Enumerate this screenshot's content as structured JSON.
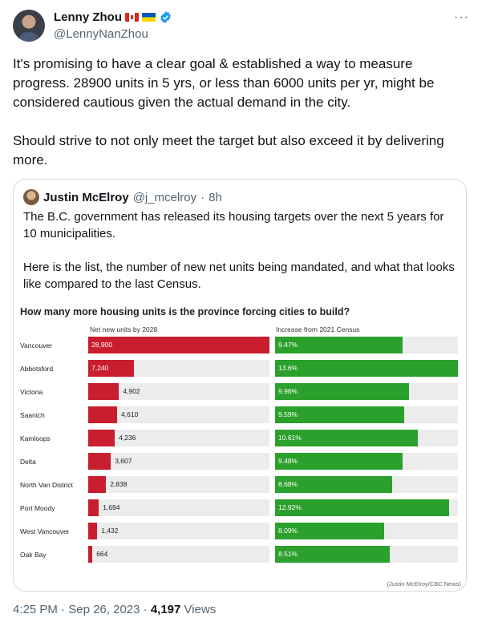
{
  "author": {
    "name": "Lenny Zhou",
    "handle": "@LennyNanZhou",
    "flags": [
      "canada-flag",
      "ukraine-flag"
    ],
    "verified_icon": "verified-badge-icon",
    "verified_color": "#1d9bf0"
  },
  "more_icon": "···",
  "tweet_text": "It's promising to have a clear goal & established a way to measure progress. 28900 units in 5 yrs, or less than 6000 units per yr, might be considered cautious given the actual demand in the city.\n\nShould strive to not only meet the target but also exceed it by delivering more.",
  "quote": {
    "name": "Justin McElroy",
    "handle": "@j_mcelroy",
    "sep": "·",
    "time": "8h",
    "text": "The B.C. government has released its housing targets over the next 5 years for 10 municipalities.\n\nHere is the list, the number of new net units being mandated, and what that looks like compared to the last Census."
  },
  "chart_data": {
    "type": "bar",
    "title": "How many more housing units is the province forcing cities to build?",
    "series_headers": [
      "Net new units by 2028",
      "Increase from 2021 Census"
    ],
    "categories": [
      "Vancouver",
      "Abbotsford",
      "Victoria",
      "Saanich",
      "Kamloops",
      "Delta",
      "North Van District",
      "Port Moody",
      "West Vancouver",
      "Oak Bay"
    ],
    "series": [
      {
        "name": "Net new units by 2028",
        "values": [
          28900,
          7240,
          4902,
          4610,
          4236,
          3607,
          2838,
          1694,
          1432,
          664
        ],
        "labels": [
          "28,900",
          "7,240",
          "4,902",
          "4,610",
          "4,236",
          "3,607",
          "2,838",
          "1,694",
          "1,432",
          "664"
        ],
        "color": "#c81e2e"
      },
      {
        "name": "Increase from 2021 Census",
        "values": [
          9.47,
          13.6,
          9.96,
          9.59,
          10.61,
          9.48,
          8.68,
          12.92,
          8.09,
          8.51
        ],
        "labels": [
          "9.47%",
          "13.6%",
          "9.96%",
          "9.59%",
          "10.61%",
          "9.48%",
          "8.68%",
          "12.92%",
          "8.09%",
          "8.51%"
        ],
        "color": "#2ba02d"
      }
    ],
    "source": "(Justin McElroy/CBC News)"
  },
  "footer": {
    "time": "4:25 PM",
    "sep": "·",
    "date": "Sep 26, 2023",
    "sep2": "·",
    "views_count": "4,197",
    "views_label": "Views"
  }
}
